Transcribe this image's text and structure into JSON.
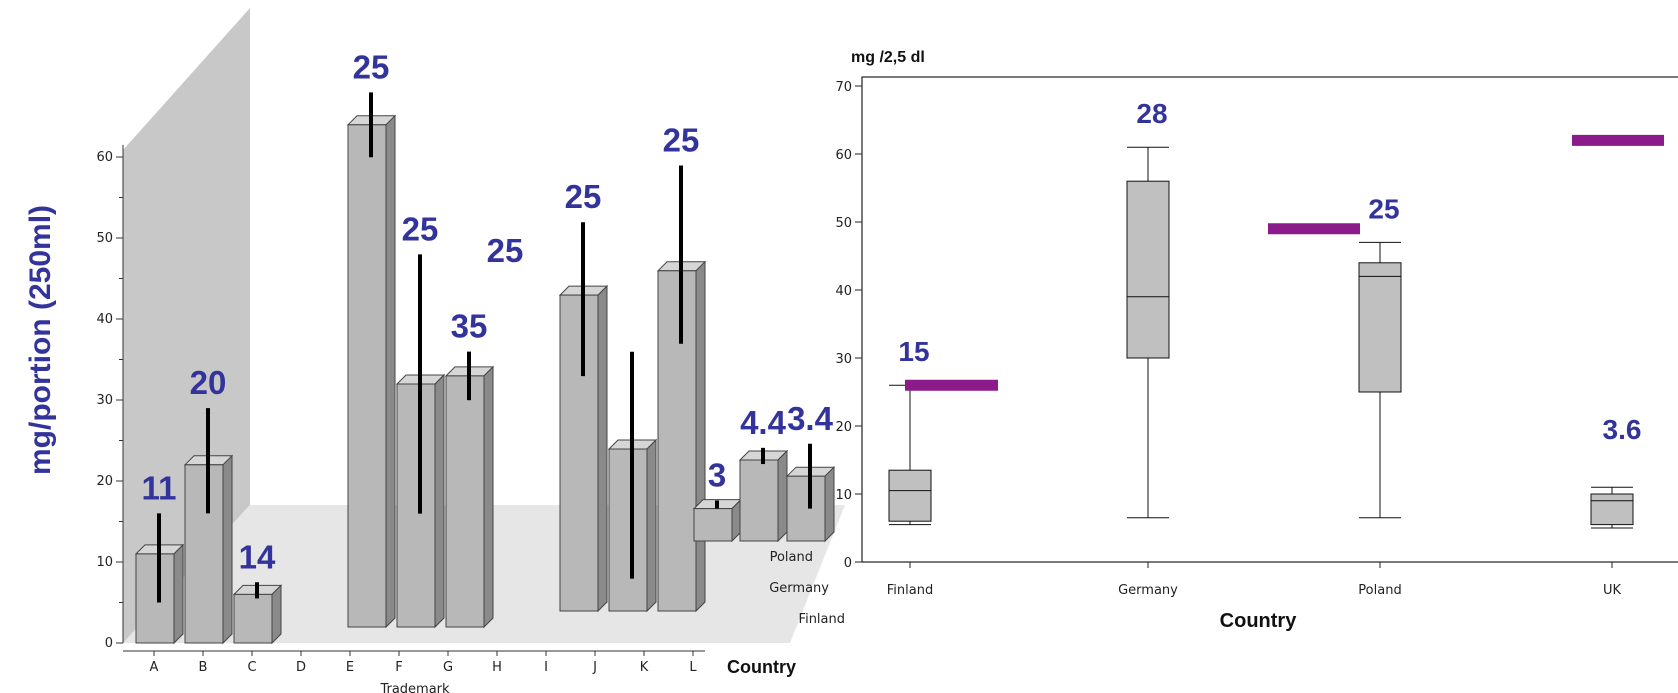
{
  "ylabel": "mg/portion (250ml)",
  "chart_data": [
    {
      "type": "bar",
      "three_d": true,
      "xlabel": "Trademark",
      "depth_axis_label": "Country",
      "ylabel": "",
      "ylim": [
        0,
        60
      ],
      "yticks": [
        "0",
        "10",
        "20",
        "30",
        "40",
        "50",
        "60"
      ],
      "categories": [
        "A",
        "B",
        "C",
        "D",
        "E",
        "F",
        "G",
        "H",
        "I",
        "J",
        "K",
        "L"
      ],
      "countries": [
        "Finland",
        "Germany",
        "Poland",
        "UK"
      ],
      "colors": {
        "bar": "#b8b8b8",
        "error_bar": "#000000",
        "label": "#33339c",
        "backwall": "#c8c8c8",
        "floor": "#e6e6e6"
      },
      "bars": [
        {
          "trademark": "A",
          "country": "Finland",
          "value": 11,
          "err_low": 5,
          "err_high": 16,
          "label": "11"
        },
        {
          "trademark": "B",
          "country": "Finland",
          "value": 22,
          "err_low": 16,
          "err_high": 29,
          "label": "20"
        },
        {
          "trademark": "C",
          "country": "Finland",
          "value": 6,
          "err_low": 5.5,
          "err_high": 7.5,
          "label": "14"
        },
        {
          "trademark": "E",
          "country": "Germany",
          "value": 62,
          "err_low": 58,
          "err_high": 66,
          "label": "25"
        },
        {
          "trademark": "F",
          "country": "Germany",
          "value": 30,
          "err_low": 14,
          "err_high": 46,
          "label": "25"
        },
        {
          "trademark": "G",
          "country": "Germany",
          "value": 31,
          "err_low": 28,
          "err_high": 34,
          "label": "35"
        },
        {
          "trademark": "I",
          "country": "Poland",
          "value": 39,
          "err_low": 29,
          "err_high": 48,
          "label": "25"
        },
        {
          "trademark": "J",
          "country": "Poland",
          "value": 20,
          "err_low": 4,
          "err_high": 32,
          "label": ""
        },
        {
          "trademark": "K",
          "country": "Poland",
          "value": 42,
          "err_low": 33,
          "err_high": 55,
          "label": "25"
        },
        {
          "trademark": "L",
          "country": "UK",
          "value": 4,
          "err_low": 4,
          "err_high": 5,
          "label": "3"
        },
        {
          "trademark": "L",
          "country": "UK",
          "value": 10,
          "err_low": 9.5,
          "err_high": 11.5,
          "label": "4.4"
        },
        {
          "trademark": "L",
          "country": "UK",
          "value": 8,
          "err_low": 4,
          "err_high": 12,
          "label": "3.4"
        }
      ],
      "extra_labels": [
        {
          "text": "25"
        }
      ]
    },
    {
      "type": "box",
      "ylabel": "mg /2,5 dl",
      "xlabel": "Country",
      "ylim": [
        0,
        70
      ],
      "yticks": [
        "0",
        "10",
        "20",
        "30",
        "40",
        "50",
        "60",
        "70"
      ],
      "categories": [
        "Finland",
        "Germany",
        "Poland",
        "UK"
      ],
      "colors": {
        "box": "#c0c0c0",
        "line": "#111111",
        "marker": "#8b1a8b",
        "label": "#33339c"
      },
      "boxes": [
        {
          "country": "Finland",
          "min": 5.5,
          "q1": 6,
          "median": 10.5,
          "q3": 13.5,
          "max": 26,
          "label": "15",
          "marker": 26
        },
        {
          "country": "Germany",
          "min": 6.5,
          "q1": 30,
          "median": 39,
          "q3": 56,
          "max": 61,
          "label": "28",
          "marker": 49
        },
        {
          "country": "Poland",
          "min": 6.5,
          "q1": 25,
          "median": 42,
          "q3": 44,
          "max": 47,
          "label": "25",
          "marker": null
        },
        {
          "country": "UK",
          "min": 5,
          "q1": 5.5,
          "median": 9,
          "q3": 10,
          "max": 11,
          "label": "3.6",
          "marker": 62
        }
      ]
    }
  ]
}
